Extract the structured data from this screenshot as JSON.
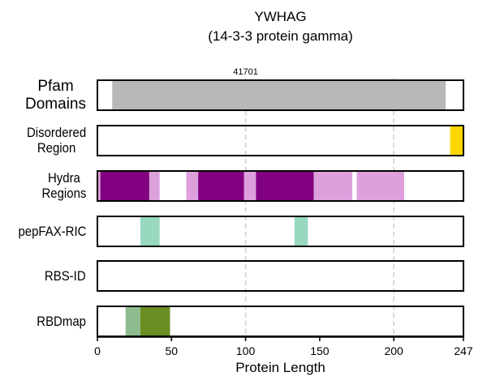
{
  "chart_data": {
    "type": "bar",
    "subtype": "protein-domain-tracks",
    "title": "YWHAG",
    "subtitle": "(14-3-3 protein gamma)",
    "xlabel": "Protein Length",
    "xlim": [
      0,
      247
    ],
    "xticks": [
      0,
      50,
      100,
      150,
      200,
      247
    ],
    "xtick_labels": [
      "0",
      "50",
      "100",
      "150",
      "200",
      "247"
    ],
    "vertical_gridlines": [
      100,
      200
    ],
    "grid": "dashed vertical at 100 and 200",
    "annotation": {
      "text": "41701",
      "x": 100
    },
    "tracks": [
      {
        "label": [
          "Pfam",
          "Domains"
        ],
        "style": "big",
        "segments": [
          {
            "start": 10,
            "end": 235,
            "color": "#b6b9b8"
          }
        ]
      },
      {
        "label": [
          "Disordered",
          "Region"
        ],
        "style": "normal",
        "segments": [
          {
            "start": 238,
            "end": 247,
            "color": "#ffd700"
          }
        ]
      },
      {
        "label": [
          "Hydra",
          "Regions"
        ],
        "style": "normal",
        "segments": [
          {
            "start": 0,
            "end": 2,
            "color": "#dda0dd"
          },
          {
            "start": 2,
            "end": 35,
            "color": "#800080"
          },
          {
            "start": 35,
            "end": 42,
            "color": "#dda0dd"
          },
          {
            "start": 60,
            "end": 68,
            "color": "#dda0dd"
          },
          {
            "start": 68,
            "end": 99,
            "color": "#800080"
          },
          {
            "start": 99,
            "end": 107,
            "color": "#dda0dd"
          },
          {
            "start": 107,
            "end": 146,
            "color": "#800080"
          },
          {
            "start": 146,
            "end": 172,
            "color": "#dda0dd"
          },
          {
            "start": 175,
            "end": 207,
            "color": "#dda0dd"
          }
        ]
      },
      {
        "label": [
          "pepFAX-RIC"
        ],
        "style": "normal",
        "segments": [
          {
            "start": 29,
            "end": 42,
            "color": "#98d8be"
          },
          {
            "start": 133,
            "end": 142,
            "color": "#98d8be"
          }
        ]
      },
      {
        "label": [
          "RBS-ID"
        ],
        "style": "normal",
        "segments": []
      },
      {
        "label": [
          "RBDmap"
        ],
        "style": "normal",
        "segments": [
          {
            "start": 19,
            "end": 29,
            "color": "#8fbc8f"
          },
          {
            "start": 29,
            "end": 49,
            "color": "#6b8e23"
          }
        ]
      }
    ]
  }
}
